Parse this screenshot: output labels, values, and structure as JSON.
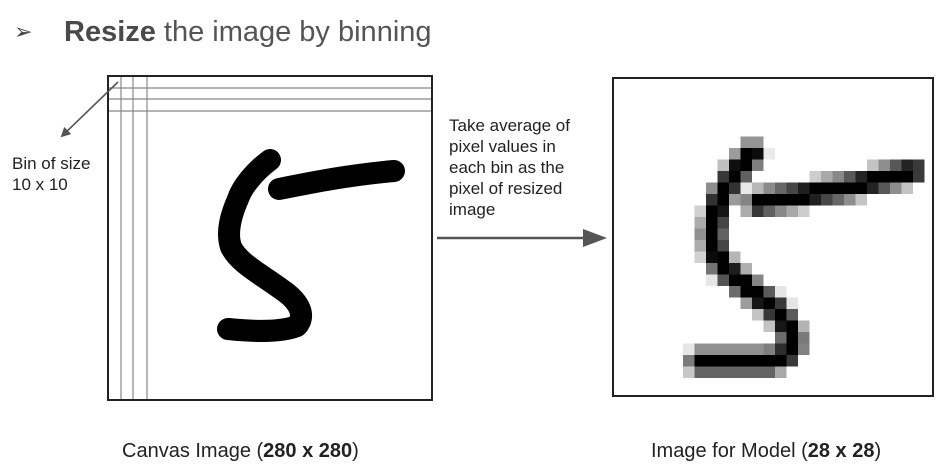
{
  "header": {
    "bullet_glyph": "➢",
    "bold_word": "Resize",
    "rest": "the image by binning"
  },
  "bin_annotation": {
    "lines": [
      "Bin of size",
      "10 x 10"
    ]
  },
  "arrow_annotation": {
    "lines": [
      "Take average of",
      "pixel values in",
      "each bin as the",
      "pixel of resized",
      "image"
    ]
  },
  "captions": {
    "canvas": {
      "prefix": "Canvas Image (",
      "bold": "280 x 280",
      "suffix": ")"
    },
    "model": {
      "prefix": "Image for Model (",
      "bold": "28 x 28",
      "suffix": ")"
    }
  },
  "colors": {
    "stroke": "#000000",
    "border": "#222222",
    "grid": "#888888",
    "arrow": "#555555"
  },
  "icons": [
    "arrowhead-bullet-icon",
    "right-arrow-icon",
    "diagonal-arrow-icon"
  ]
}
